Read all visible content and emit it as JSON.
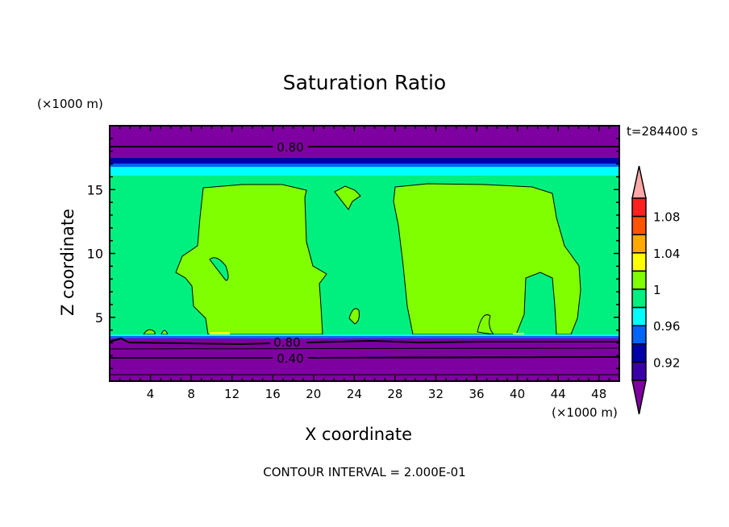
{
  "chart_data": {
    "type": "heatmap",
    "subtype": "filled-contour",
    "title": "Saturation Ratio",
    "xlabel": "X coordinate",
    "ylabel": "Z coordinate",
    "x_unit": "(×1000 m)",
    "y_unit": "(×1000 m)",
    "xlim": [
      0,
      50
    ],
    "ylim": [
      0,
      20
    ],
    "xticks": [
      4,
      8,
      12,
      16,
      20,
      24,
      28,
      32,
      36,
      40,
      44,
      48
    ],
    "yticks": [
      5,
      10,
      15
    ],
    "time_label": "t=284400 s",
    "footer": "CONTOUR INTERVAL = 2.000E-01",
    "contour_labels": [
      "0.80",
      "0.80",
      "0.40"
    ],
    "colorbar": {
      "levels": [
        0.9,
        0.92,
        0.94,
        0.96,
        0.98,
        1.0,
        1.02,
        1.04,
        1.06,
        1.08,
        1.1
      ],
      "tick_labels": [
        "0.92",
        "0.96",
        "1",
        "1.04",
        "1.08"
      ],
      "colors": [
        "#7f00a0",
        "#3a00a8",
        "#0000a8",
        "#0064ff",
        "#00ffff",
        "#00f080",
        "#80ff00",
        "#ffff00",
        "#ffa800",
        "#ff5500",
        "#ff2020",
        "#ffa8a8"
      ]
    },
    "regions": [
      {
        "name": "lower dry layer",
        "z_range": [
          0,
          3.5
        ],
        "value": "<0.90"
      },
      {
        "name": "ambient",
        "z_range": [
          3.5,
          16
        ],
        "value": "0.98-1.00"
      },
      {
        "name": "cloud column 1",
        "x_range": [
          8,
          21
        ],
        "z_range": [
          3.5,
          15.5
        ],
        "value": "1.00-1.02"
      },
      {
        "name": "cloud column 2",
        "x_range": [
          28,
          46
        ],
        "z_range": [
          3.5,
          15.5
        ],
        "value": "1.00-1.02"
      },
      {
        "name": "upper dry layer",
        "z_range": [
          17,
          20
        ],
        "value": "<0.90"
      }
    ]
  }
}
